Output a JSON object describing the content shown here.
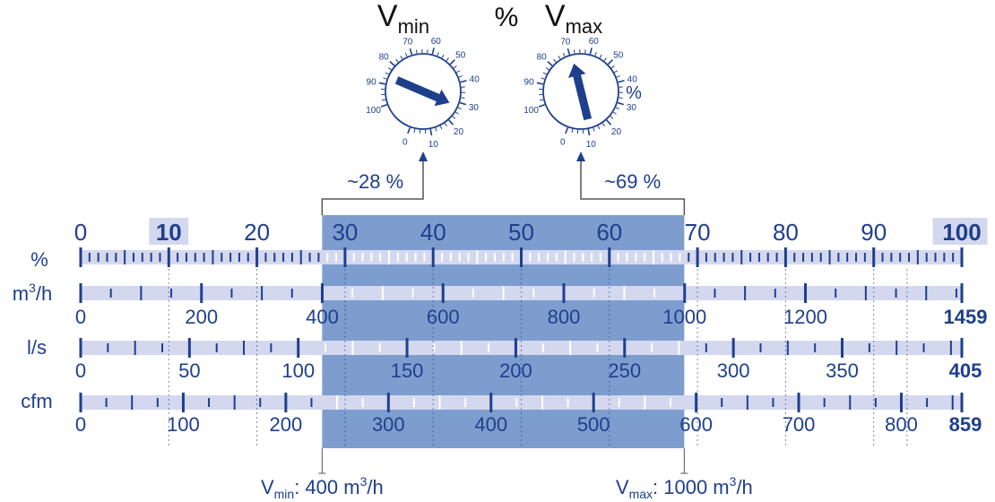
{
  "colors": {
    "dark_blue": "#1e3f8c",
    "band_light": "#d4d8ef",
    "highlight_area": "#7e9dcf",
    "label_highlight": "#d4d8ef",
    "line_gray": "#555555"
  },
  "dials": {
    "vmin": {
      "label_main": "V",
      "label_sub": "min",
      "ticks": [
        "0",
        "10",
        "20",
        "30",
        "40",
        "50",
        "60",
        "70",
        "80",
        "90",
        "100"
      ],
      "arrow_value_percent": 28
    },
    "percent_symbol": "%",
    "vmax": {
      "label_main": "V",
      "label_sub": "max",
      "ticks": [
        "0",
        "10",
        "20",
        "30",
        "40",
        "50",
        "60",
        "70",
        "80",
        "90",
        "100"
      ],
      "unit_label": "%",
      "arrow_value_percent": 69
    }
  },
  "bracket_labels": {
    "min": "~28 %",
    "max": "~69 %"
  },
  "scales": {
    "percent": {
      "label": "%",
      "major_values": [
        0,
        10,
        20,
        30,
        40,
        50,
        60,
        70,
        80,
        90,
        100
      ],
      "tick_labels": [
        "0",
        "10",
        "20",
        "30",
        "40",
        "50",
        "60",
        "70",
        "80",
        "90",
        "100"
      ],
      "bold_labels": [
        "10",
        "100"
      ]
    },
    "m3h": {
      "label_main": "m",
      "label_sup": "3",
      "label_rest": "/h",
      "max_value": 1459,
      "major_values": [
        0,
        200,
        400,
        600,
        800,
        1000,
        1200
      ],
      "tick_labels": [
        "0",
        "200",
        "400",
        "600",
        "800",
        "1000",
        "1200"
      ],
      "max_label": "1459"
    },
    "ls": {
      "label": "l/s",
      "max_value": 405,
      "major_values": [
        0,
        50,
        100,
        150,
        200,
        250,
        300,
        350
      ],
      "tick_labels": [
        "0",
        "50",
        "100",
        "150",
        "200",
        "250",
        "300",
        "350"
      ],
      "max_label": "405"
    },
    "cfm": {
      "label": "cfm",
      "max_value": 859,
      "major_values": [
        0,
        100,
        200,
        300,
        400,
        500,
        600,
        700,
        800
      ],
      "tick_labels": [
        "0",
        "100",
        "200",
        "300",
        "400",
        "500",
        "600",
        "700",
        "800"
      ],
      "max_label": "859"
    }
  },
  "selection": {
    "min_percent": 27.4,
    "max_percent": 68.5
  },
  "bottom_labels": {
    "vmin_main": "V",
    "vmin_sub": "min",
    "vmin_text": ": 400 m",
    "vmin_sup": "3",
    "vmin_tail": "/h",
    "vmax_main": "V",
    "vmax_sub": "max",
    "vmax_text": ": 1000 m",
    "vmax_sup": "3",
    "vmax_tail": "/h"
  }
}
